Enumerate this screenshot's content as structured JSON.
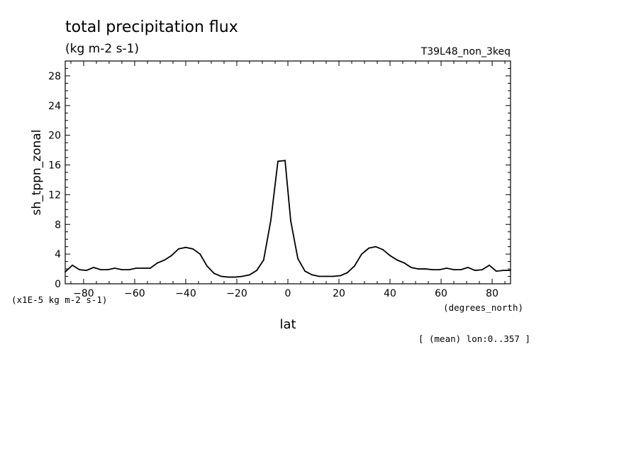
{
  "chart_data": {
    "type": "line",
    "title": "total precipitation flux",
    "units": "(kg m-2 s-1)",
    "experiment": "T39L48_non_3keq",
    "xlabel": "lat",
    "x_units": "(degrees_north)",
    "ylabel": "sh_tppn_zonal",
    "y_scale_note": "(x1E-5 kg m-2 s-1)",
    "footnote": "[ (mean) lon:0..357 ]",
    "xlim": [
      -87.2,
      87.2
    ],
    "ylim": [
      0,
      30
    ],
    "x_ticks": [
      -80,
      -60,
      -40,
      -20,
      0,
      20,
      40,
      60,
      80
    ],
    "y_ticks": [
      0,
      4,
      8,
      12,
      16,
      20,
      24,
      28
    ],
    "grid": false,
    "series": [
      {
        "x": [
          -87.2,
          -84.4,
          -81.6,
          -78.9,
          -76.1,
          -73.3,
          -70.5,
          -67.8,
          -65.0,
          -62.2,
          -59.4,
          -56.7,
          -53.9,
          -51.1,
          -48.3,
          -45.6,
          -42.8,
          -40.0,
          -37.2,
          -34.4,
          -31.7,
          -28.9,
          -26.1,
          -23.3,
          -20.6,
          -17.8,
          -15.0,
          -12.2,
          -9.5,
          -6.7,
          -3.9,
          -1.1,
          1.1,
          3.9,
          6.7,
          9.5,
          12.2,
          15.0,
          17.8,
          20.6,
          23.3,
          26.1,
          28.9,
          31.7,
          34.4,
          37.2,
          40.0,
          42.8,
          45.6,
          48.3,
          51.1,
          53.9,
          56.7,
          59.4,
          62.2,
          65.0,
          67.8,
          70.5,
          73.3,
          76.1,
          78.9,
          81.6,
          84.4,
          87.2
        ],
        "y": [
          1.6,
          2.5,
          1.9,
          1.8,
          2.2,
          1.9,
          1.9,
          2.1,
          1.9,
          1.9,
          2.1,
          2.1,
          2.1,
          2.8,
          3.2,
          3.8,
          4.7,
          4.9,
          4.7,
          4.0,
          2.4,
          1.4,
          1.0,
          0.9,
          0.9,
          1.0,
          1.2,
          1.8,
          3.2,
          8.5,
          16.5,
          16.6,
          8.5,
          3.4,
          1.7,
          1.2,
          1.0,
          1.0,
          1.0,
          1.1,
          1.5,
          2.4,
          4.0,
          4.8,
          5.0,
          4.6,
          3.8,
          3.2,
          2.8,
          2.2,
          2.0,
          2.0,
          1.9,
          1.9,
          2.1,
          1.9,
          1.9,
          2.2,
          1.8,
          1.9,
          2.5,
          1.7,
          1.8,
          1.8
        ]
      }
    ]
  }
}
